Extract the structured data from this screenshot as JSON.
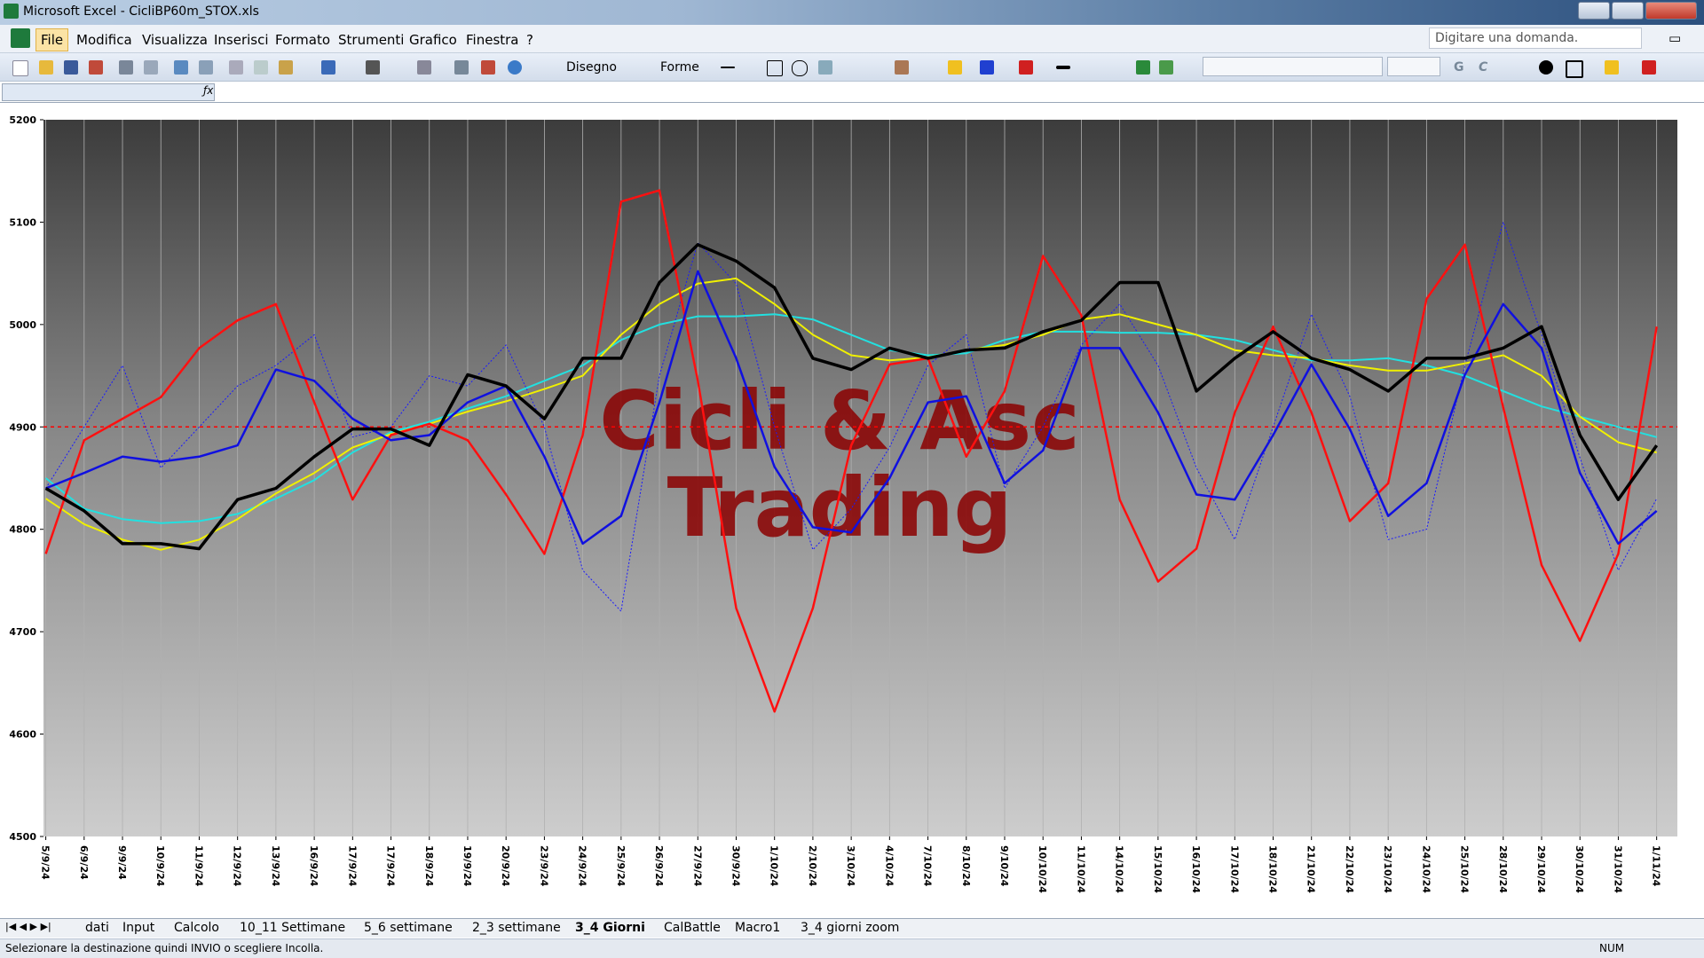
{
  "window": {
    "title": "Microsoft Excel - CicliBP60m_STOX.xls"
  },
  "menu": [
    "File",
    "Modifica",
    "Visualizza",
    "Inserisci",
    "Formato",
    "Strumenti",
    "Grafico",
    "Finestra",
    "?"
  ],
  "help_box": "Digitare una domanda.",
  "toolbar": {
    "draw": "Disegno",
    "shapes": "Forme",
    "bold": "G",
    "italic": "C"
  },
  "chart_data": {
    "type": "line",
    "categories": [
      "5/9/24",
      "6/9/24",
      "9/9/24",
      "10/9/24",
      "11/9/24",
      "12/9/24",
      "13/9/24",
      "16/9/24",
      "17/9/24",
      "17/9/24",
      "18/9/24",
      "19/9/24",
      "20/9/24",
      "23/9/24",
      "24/9/24",
      "25/9/24",
      "26/9/24",
      "27/9/24",
      "30/9/24",
      "1/10/24",
      "2/10/24",
      "3/10/24",
      "4/10/24",
      "7/10/24",
      "8/10/24",
      "9/10/24",
      "10/10/24",
      "11/10/24",
      "14/10/24",
      "15/10/24",
      "16/10/24",
      "17/10/24",
      "18/10/24",
      "21/10/24",
      "22/10/24",
      "23/10/24",
      "24/10/24",
      "25/10/24",
      "28/10/24",
      "29/10/24",
      "30/10/24",
      "31/10/24",
      "1/11/24"
    ],
    "series": [
      {
        "color": "#1a1aff",
        "dashed": true,
        "width": 1,
        "values": [
          4840,
          4900,
          4960,
          4860,
          4900,
          4940,
          4960,
          4990,
          4890,
          4900,
          4950,
          4940,
          4980,
          4900,
          4760,
          4720,
          4950,
          5080,
          5040,
          4900,
          4780,
          4820,
          4880,
          4960,
          4990,
          4840,
          4900,
          4980,
          5020,
          4960,
          4860,
          4790,
          4900,
          5010,
          4930,
          4790,
          4800,
          4960,
          5100,
          4990,
          4870,
          4760,
          4830
        ]
      },
      {
        "color": "#22e0e0",
        "width": 2,
        "values": [
          4850,
          4820,
          4810,
          4806,
          4808,
          4815,
          4830,
          4848,
          4875,
          4895,
          4905,
          4918,
          4930,
          4945,
          4960,
          4985,
          5000,
          5008,
          5008,
          5010,
          5005,
          4990,
          4975,
          4970,
          4972,
          4985,
          4993,
          4993,
          4992,
          4992,
          4990,
          4985,
          4975,
          4965,
          4965,
          4967,
          4960,
          4950,
          4935,
          4920,
          4910,
          4900,
          4890
        ]
      },
      {
        "color": "#f0f000",
        "width": 2,
        "values": [
          4830,
          4805,
          4790,
          4780,
          4790,
          4810,
          4835,
          4855,
          4880,
          4893,
          4903,
          4915,
          4925,
          4937,
          4950,
          4990,
          5020,
          5040,
          5045,
          5020,
          4990,
          4970,
          4965,
          4968,
          4975,
          4980,
          4990,
          5005,
          5010,
          5000,
          4990,
          4975,
          4970,
          4967,
          4960,
          4955,
          4955,
          4962,
          4970,
          4950,
          4910,
          4885,
          4875
        ]
      },
      {
        "color": "#ff1010",
        "width": 2.5,
        "values": [
          4776,
          4887,
          4908,
          4929,
          4977,
          5004,
          5020,
          4924,
          4829,
          4892,
          4903,
          4887,
          4834,
          4776,
          4892,
          5120,
          5131,
          4945,
          4723,
          4622,
          4723,
          4882,
          4961,
          4967,
          4871,
          4935,
          5067,
          5009,
          4829,
          4749,
          4781,
          4914,
          4998,
          4914,
          4808,
          4845,
          5025,
          5078,
          4919,
          4765,
          4691,
          4776,
          4998
        ]
      },
      {
        "color": "#1010e0",
        "width": 2.5,
        "values": [
          4840,
          4855,
          4871,
          4866,
          4871,
          4882,
          4956,
          4945,
          4908,
          4887,
          4892,
          4924,
          4940,
          4871,
          4786,
          4813,
          4924,
          5052,
          4967,
          4861,
          4802,
          4797,
          4850,
          4924,
          4930,
          4845,
          4877,
          4977,
          4977,
          4914,
          4834,
          4829,
          4892,
          4961,
          4898,
          4813,
          4845,
          4951,
          5020,
          4977,
          4855,
          4786,
          4818
        ]
      },
      {
        "color": "#000000",
        "width": 3.5,
        "values": [
          4840,
          4818,
          4786,
          4786,
          4781,
          4829,
          4840,
          4871,
          4898,
          4898,
          4882,
          4951,
          4940,
          4908,
          4967,
          4967,
          5041,
          5078,
          5062,
          5036,
          4967,
          4956,
          4977,
          4967,
          4975,
          4977,
          4993,
          5004,
          5041,
          5041,
          4935,
          4967,
          4993,
          4967,
          4956,
          4935,
          4967,
          4967,
          4977,
          4998,
          4892,
          4829,
          4882
        ]
      }
    ],
    "reference_line": {
      "value": 4900,
      "color": "#ff0000"
    },
    "annotations": [
      "Cicli & Asc",
      "Trading"
    ],
    "ylim": [
      4500,
      5200
    ],
    "yticks": [
      4500,
      4600,
      4700,
      4800,
      4900,
      5000,
      5100,
      5200
    ],
    "grid": "x"
  },
  "sheet_tabs": [
    "dati",
    "Input",
    "Calcolo",
    "10_11 Settimane",
    "5_6 settimane",
    "2_3 settimane",
    "3_4 Giorni",
    "CalBattle",
    "Macro1",
    "3_4 giorni zoom"
  ],
  "status_bar": {
    "message": "Selezionare la destinazione quindi INVIO o scegliere Incolla.",
    "num": "NUM"
  }
}
